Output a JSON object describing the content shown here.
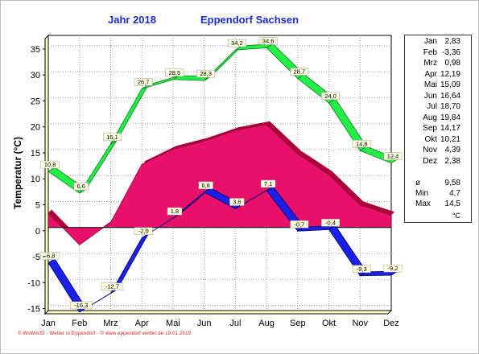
{
  "title": {
    "year": "Jahr  2018",
    "station": "Eppendorf Sachsen"
  },
  "footer": "© WsWin32 - Wetter in Eppendorf - © www.eppendorf-wetter.de  19.01.2019",
  "legend": {
    "months": [
      {
        "name": "Jan",
        "value": "2,83"
      },
      {
        "name": "Feb",
        "value": "-3,36"
      },
      {
        "name": "Mrz",
        "value": "0,98"
      },
      {
        "name": "Apr",
        "value": "12,19"
      },
      {
        "name": "Mai",
        "value": "15,09"
      },
      {
        "name": "Jun",
        "value": "16,64"
      },
      {
        "name": "Jul",
        "value": "18,70"
      },
      {
        "name": "Aug",
        "value": "19,84"
      },
      {
        "name": "Sep",
        "value": "14,17"
      },
      {
        "name": "Okt",
        "value": "10,21"
      },
      {
        "name": "Nov",
        "value": "4,39"
      },
      {
        "name": "Dez",
        "value": "2,38"
      }
    ],
    "summary": [
      {
        "name": "ø",
        "value": "9,58"
      },
      {
        "name": "Min",
        "value": "4,7"
      },
      {
        "name": "Max",
        "value": "14,5"
      }
    ],
    "unit": "°C"
  },
  "chart_data": {
    "type": "area",
    "title": "Jahr  2018  Eppendorf Sachsen",
    "xlabel": "",
    "ylabel": "Temperatur  (°C)",
    "ylim": [
      -16,
      37
    ],
    "yticks": [
      -15,
      -10,
      -5,
      0,
      5,
      10,
      15,
      20,
      25,
      30,
      35
    ],
    "categories": [
      "Jan",
      "Feb",
      "Mrz",
      "Apr",
      "Mai",
      "Jun",
      "Jul",
      "Aug",
      "Sep",
      "Okt",
      "Nov",
      "Dez"
    ],
    "grid": true,
    "series": [
      {
        "kind": "area",
        "color": "#e8106a",
        "values": [
          2.83,
          -3.36,
          0.98,
          12.19,
          15.09,
          16.64,
          18.7,
          19.84,
          14.17,
          10.21,
          4.39,
          2.38
        ]
      },
      {
        "kind": "band",
        "color": "#22ee44",
        "values": [
          10.8,
          6.6,
          16.1,
          26.7,
          28.5,
          28.3,
          34.2,
          34.6,
          28.7,
          24.0,
          14.8,
          12.4
        ],
        "labels": [
          "10,8",
          "6,6",
          "16,1",
          "26,7",
          "28,5",
          "28,3",
          "34,2",
          "34,6",
          "28,7",
          "24,0",
          "14,8",
          "12,4"
        ]
      },
      {
        "kind": "band",
        "color": "#1a20e6",
        "values": [
          -6.8,
          -16.3,
          -12.7,
          -2.0,
          1.8,
          6.8,
          3.6,
          7.1,
          -0.7,
          -0.4,
          -9.3,
          -9.2
        ],
        "labels": [
          "-6,8",
          "-16,3",
          "-12,7",
          "-2,0",
          "1,8",
          "6,8",
          "3,6",
          "7,1",
          "-0,7",
          "-0,4",
          "-9,3",
          "-9,2"
        ]
      }
    ]
  }
}
